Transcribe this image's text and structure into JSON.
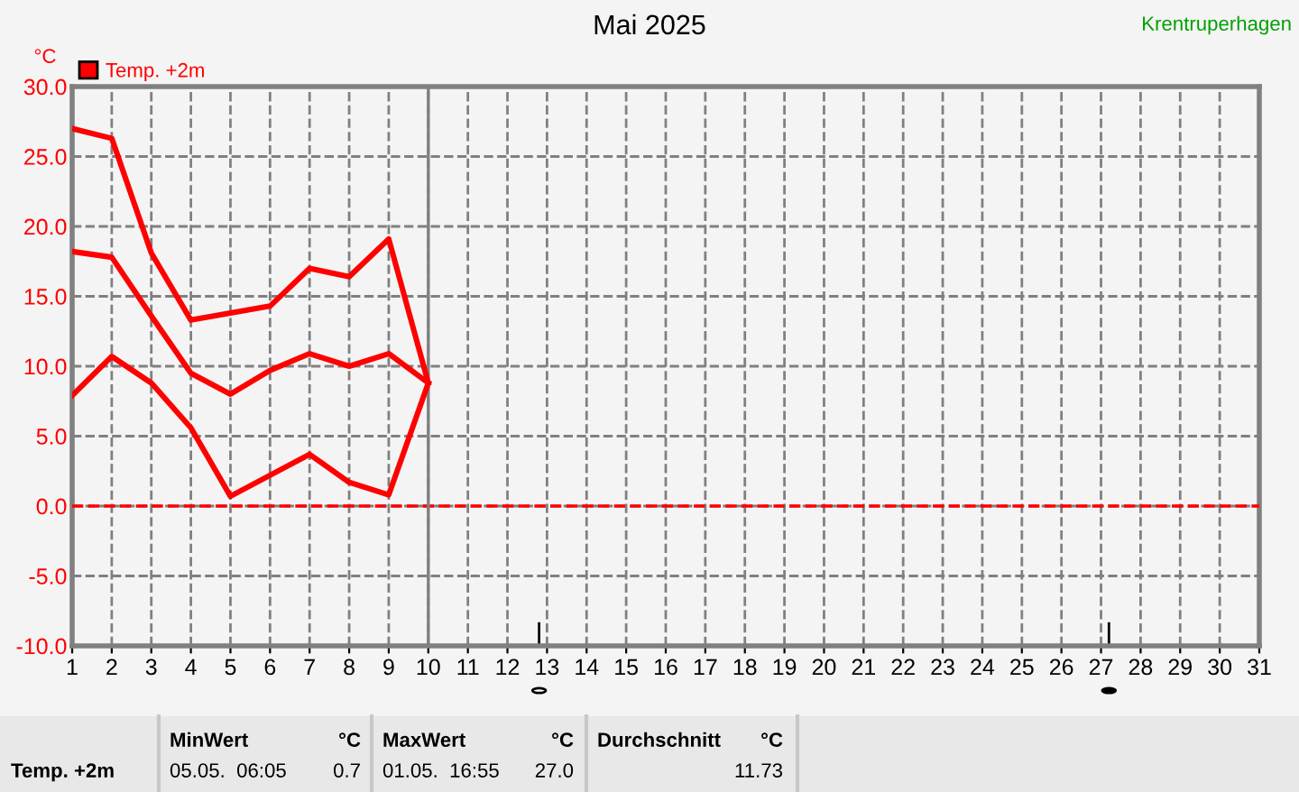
{
  "chart_data": {
    "type": "line",
    "title": "Mai 2025",
    "ylabel": "°C",
    "x": [
      1,
      2,
      3,
      4,
      5,
      6,
      7,
      8,
      9,
      10
    ],
    "series": [
      {
        "name": "Temp. +2m",
        "color": "#ff0000",
        "values": [
          18.2,
          17.8,
          13.6,
          9.5,
          8.0,
          9.7,
          10.9,
          10.0,
          10.9,
          8.8
        ]
      },
      {
        "color": "#ff0000",
        "values": [
          27.0,
          26.3,
          18.1,
          13.3,
          13.8,
          14.3,
          17.0,
          16.4,
          19.1,
          8.8
        ]
      },
      {
        "color": "#ff0000",
        "values": [
          7.9,
          10.7,
          8.8,
          5.6,
          0.7,
          2.2,
          3.7,
          1.7,
          0.8,
          8.8
        ]
      }
    ],
    "xlim": [
      1,
      31
    ],
    "xticks": [
      1,
      2,
      3,
      4,
      5,
      6,
      7,
      8,
      9,
      10,
      11,
      12,
      13,
      14,
      15,
      16,
      17,
      18,
      19,
      20,
      21,
      22,
      23,
      24,
      25,
      26,
      27,
      28,
      29,
      30,
      31
    ],
    "ylim": [
      -10,
      30
    ],
    "yticks": [
      {
        "value": -10,
        "label": "-10.0"
      },
      {
        "value": -5,
        "label": "-5.0"
      },
      {
        "value": 0,
        "label": "0.0"
      },
      {
        "value": 5,
        "label": "5.0"
      },
      {
        "value": 10,
        "label": "10.0"
      },
      {
        "value": 15,
        "label": "15.0"
      },
      {
        "value": 20,
        "label": "20.0"
      },
      {
        "value": 25,
        "label": "25.0"
      },
      {
        "value": 30,
        "label": "30.0"
      }
    ],
    "ref_lines": [
      {
        "axis": "y",
        "value": 0,
        "color": "#ff0000",
        "line_style": "dashed"
      },
      {
        "axis": "x",
        "value": 10,
        "color": "#808080",
        "line_style": "solid"
      }
    ],
    "grid": true,
    "legend": "top left",
    "marker": "none",
    "line_style": "solid",
    "annotations": [
      "Krentruperhagen",
      "Temp. +2m",
      "MinWert",
      "°C",
      "05.05.  06:05",
      "0.7",
      "MaxWert",
      "°C",
      "01.05.  16:55",
      "27.0",
      "Durchschnitt",
      "°C",
      "11.73"
    ]
  }
}
